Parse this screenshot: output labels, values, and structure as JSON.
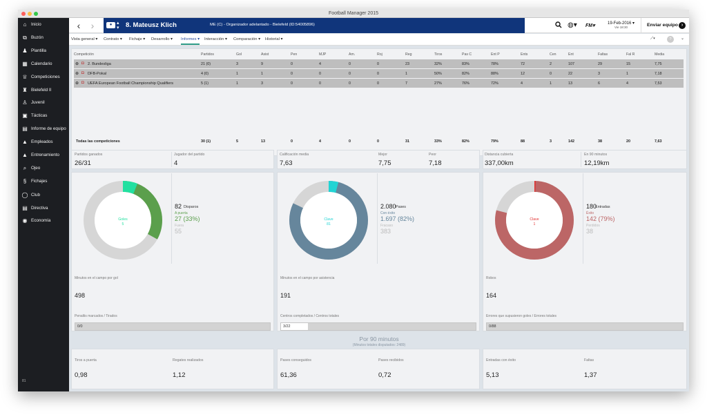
{
  "window": {
    "title": "Football Manager 2015"
  },
  "sidebar": {
    "items": [
      {
        "label": "Inicio",
        "icon": "home-icon"
      },
      {
        "label": "Buzón",
        "icon": "inbox-icon"
      },
      {
        "label": "Plantilla",
        "icon": "squad-icon"
      },
      {
        "label": "Calendario",
        "icon": "calendar-icon"
      },
      {
        "label": "Competiciones",
        "icon": "trophy-icon"
      },
      {
        "label": "Bielefeld II",
        "icon": "team-icon"
      },
      {
        "label": "Juvenil",
        "icon": "youth-icon"
      },
      {
        "label": "Tácticas",
        "icon": "tactics-icon"
      },
      {
        "label": "Informe de equipo",
        "icon": "report-icon"
      },
      {
        "label": "Empleados",
        "icon": "staff-icon"
      },
      {
        "label": "Entrenamiento",
        "icon": "training-icon"
      },
      {
        "label": "Ojeo",
        "icon": "scouting-icon"
      },
      {
        "label": "Fichajes",
        "icon": "transfers-icon"
      },
      {
        "label": "Club",
        "icon": "club-icon"
      },
      {
        "label": "Directiva",
        "icon": "board-icon"
      },
      {
        "label": "Economía",
        "icon": "finances-icon"
      }
    ],
    "footer": "81"
  },
  "topbar": {
    "player_name": "8. Mateusz Klich",
    "player_info": "ME (C) - Organizador adelantado - Bielefeld (ID:54005896)",
    "date": "19-Feb-2016",
    "day": "Vie 18:30",
    "send_label": "Enviar equipo"
  },
  "tabs": [
    "Vista general",
    "Contrato",
    "Fichaje",
    "Desarrollo",
    "Informes",
    "Interacción",
    "Comparación",
    "Historial"
  ],
  "active_tab": "Informes",
  "table": {
    "headers": [
      "Competición",
      "Partidos",
      "Gol",
      "Asist",
      "Pen",
      "MJP",
      "Am.",
      "Roj",
      "Reg",
      "Tiros",
      "Pas C",
      "Ent P",
      "Ents",
      "Cen",
      "Ent",
      "Faltas",
      "Fal R",
      "Media"
    ],
    "rows": [
      {
        "name": "2. Bundesliga",
        "values": [
          "21 (0)",
          "3",
          "9",
          "0",
          "4",
          "0",
          "0",
          "23",
          "32%",
          "83%",
          "78%",
          "72",
          "2",
          "107",
          "29",
          "15",
          "7,75"
        ]
      },
      {
        "name": "DFB-Pokal",
        "values": [
          "4 (0)",
          "1",
          "1",
          "0",
          "0",
          "0",
          "0",
          "1",
          "50%",
          "82%",
          "88%",
          "12",
          "0",
          "22",
          "3",
          "1",
          "7,18"
        ]
      },
      {
        "name": "UEFA European Football Championship Qualifiers",
        "values": [
          "5 (1)",
          "1",
          "3",
          "0",
          "0",
          "0",
          "0",
          "7",
          "27%",
          "76%",
          "72%",
          "4",
          "1",
          "13",
          "6",
          "4",
          "7,53"
        ]
      }
    ],
    "total": {
      "name": "Todas las competiciones",
      "values": [
        "30 (1)",
        "5",
        "13",
        "0",
        "4",
        "0",
        "0",
        "31",
        "33%",
        "82%",
        "79%",
        "88",
        "3",
        "142",
        "38",
        "20",
        "7,63"
      ]
    }
  },
  "summary": [
    {
      "label": "Partidos ganados",
      "value": "26/31"
    },
    {
      "label": "Jugador del partido",
      "value": "4"
    },
    {
      "label": "Calificación media",
      "value": "7,63"
    },
    {
      "label": "Mejor",
      "value": "7,75"
    },
    {
      "label": "Peor",
      "value": "7,18"
    },
    {
      "label": "Distancia cubierta",
      "value": "337,00km"
    },
    {
      "label": "En 90 minutos",
      "value": "12,19km"
    }
  ],
  "donuts": [
    {
      "center_label": "Goles",
      "center_value": "5",
      "total": "82",
      "total_label": "Disparos",
      "mid_label": "A puerta",
      "mid_value": "27 (33%)",
      "low_label": "Fuera",
      "low_value": "55",
      "fraction": 0.33,
      "inner_fraction": 0.06,
      "color": "#5b9f4c",
      "accent": "#22e0a0",
      "gray": "#d6d6d6",
      "stat_label": "Minutos en el campo por gol",
      "stat_value": "498",
      "bar_label": "Penaltis marcados / Tirados",
      "bar_value": "0/0",
      "bar_fraction": 0
    },
    {
      "center_label": "Clave",
      "center_value": "81",
      "total": "2.080",
      "total_label": "Pases",
      "mid_label": "Con éxito",
      "mid_value": "1.697 (82%)",
      "low_label": "Fracaso",
      "low_value": "383",
      "fraction": 0.82,
      "inner_fraction": 0.04,
      "color": "#66869c",
      "accent": "#22d4d4",
      "gray": "#d6d6d6",
      "stat_label": "Minutos en el campo por asistencia",
      "stat_value": "191",
      "bar_label": "Centros completados / Centros totales",
      "bar_value": "3/22",
      "bar_fraction": 0.14
    },
    {
      "center_label": "Clave",
      "center_value": "1",
      "total": "180",
      "total_label": "Entradas",
      "mid_label": "Éxito",
      "mid_value": "142 (79%)",
      "low_label": "Perdidos",
      "low_value": "38",
      "fraction": 0.79,
      "inner_fraction": 0.005,
      "color": "#bc6666",
      "accent": "#e23030",
      "gray": "#d6d6d6",
      "stat_label": "Robos",
      "stat_value": "164",
      "bar_label": "Errores que supusieron goles / Errores totales",
      "bar_value": "0/88",
      "bar_fraction": 0
    }
  ],
  "per90": {
    "title": "Por 90 minutos",
    "subtitle": "(Minutos totales disputados: 2489)",
    "items": [
      {
        "label": "Tiros a puerta",
        "value": "0,98"
      },
      {
        "label": "Regates realizados",
        "value": "1,12"
      },
      {
        "label": "Pases conseguidos",
        "value": "61,36"
      },
      {
        "label": "Pases recibidos",
        "value": "0,72"
      },
      {
        "label": "Entradas con éxito",
        "value": "5,13"
      },
      {
        "label": "Faltas",
        "value": "1,37"
      }
    ]
  }
}
